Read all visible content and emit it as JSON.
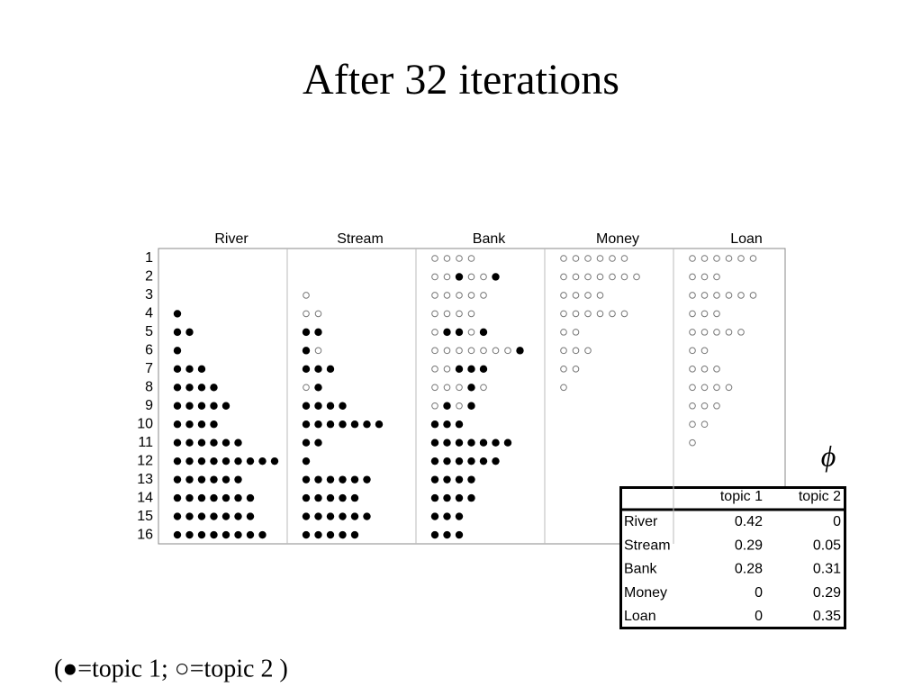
{
  "title": "After 32 iterations",
  "row_labels": [
    "1",
    "2",
    "3",
    "4",
    "5",
    "6",
    "7",
    "8",
    "9",
    "10",
    "11",
    "12",
    "13",
    "14",
    "15",
    "16"
  ],
  "columns": [
    {
      "name": "River",
      "cells": [
        [],
        [],
        [],
        [
          1
        ],
        [
          1,
          1
        ],
        [
          1
        ],
        [
          1,
          1,
          1
        ],
        [
          1,
          1,
          1,
          1
        ],
        [
          1,
          1,
          1,
          1,
          1
        ],
        [
          1,
          1,
          1,
          1
        ],
        [
          1,
          1,
          1,
          1,
          1,
          1
        ],
        [
          1,
          1,
          1,
          1,
          1,
          1,
          1,
          1,
          1
        ],
        [
          1,
          1,
          1,
          1,
          1,
          1
        ],
        [
          1,
          1,
          1,
          1,
          1,
          1,
          1
        ],
        [
          1,
          1,
          1,
          1,
          1,
          1,
          1
        ],
        [
          1,
          1,
          1,
          1,
          1,
          1,
          1,
          1
        ]
      ]
    },
    {
      "name": "Stream",
      "cells": [
        [],
        [],
        [
          2
        ],
        [
          2,
          2
        ],
        [
          1,
          1
        ],
        [
          1,
          2
        ],
        [
          1,
          1,
          1
        ],
        [
          2,
          1
        ],
        [
          1,
          1,
          1,
          1
        ],
        [
          1,
          1,
          1,
          1,
          1,
          1,
          1
        ],
        [
          1,
          1
        ],
        [
          1
        ],
        [
          1,
          1,
          1,
          1,
          1,
          1
        ],
        [
          1,
          1,
          1,
          1,
          1
        ],
        [
          1,
          1,
          1,
          1,
          1,
          1
        ],
        [
          1,
          1,
          1,
          1,
          1
        ]
      ]
    },
    {
      "name": "Bank",
      "cells": [
        [
          2,
          2,
          2,
          2
        ],
        [
          2,
          2,
          1,
          2,
          2,
          1
        ],
        [
          2,
          2,
          2,
          2,
          2
        ],
        [
          2,
          2,
          2,
          2
        ],
        [
          2,
          1,
          1,
          2,
          1
        ],
        [
          2,
          2,
          2,
          2,
          2,
          2,
          2,
          1
        ],
        [
          2,
          2,
          1,
          1,
          1
        ],
        [
          2,
          2,
          2,
          1,
          2
        ],
        [
          2,
          1,
          2,
          1
        ],
        [
          1,
          1,
          1
        ],
        [
          1,
          1,
          1,
          1,
          1,
          1,
          1
        ],
        [
          1,
          1,
          1,
          1,
          1,
          1
        ],
        [
          1,
          1,
          1,
          1
        ],
        [
          1,
          1,
          1,
          1
        ],
        [
          1,
          1,
          1
        ],
        [
          1,
          1,
          1
        ]
      ]
    },
    {
      "name": "Money",
      "cells": [
        [
          2,
          2,
          2,
          2,
          2,
          2
        ],
        [
          2,
          2,
          2,
          2,
          2,
          2,
          2
        ],
        [
          2,
          2,
          2,
          2
        ],
        [
          2,
          2,
          2,
          2,
          2,
          2
        ],
        [
          2,
          2
        ],
        [
          2,
          2,
          2
        ],
        [
          2,
          2
        ],
        [
          2
        ],
        [],
        [],
        [],
        [],
        [],
        [],
        [],
        []
      ]
    },
    {
      "name": "Loan",
      "cells": [
        [
          2,
          2,
          2,
          2,
          2,
          2
        ],
        [
          2,
          2,
          2
        ],
        [
          2,
          2,
          2,
          2,
          2,
          2
        ],
        [
          2,
          2,
          2
        ],
        [
          2,
          2,
          2,
          2,
          2
        ],
        [
          2,
          2
        ],
        [
          2,
          2,
          2
        ],
        [
          2,
          2,
          2,
          2
        ],
        [
          2,
          2,
          2
        ],
        [
          2,
          2
        ],
        [
          2
        ],
        [],
        [],
        [],
        [],
        []
      ]
    }
  ],
  "phi": "ϕ",
  "table": {
    "header": [
      "topic 1",
      "topic 2"
    ],
    "rows": [
      [
        "River",
        0.42,
        0
      ],
      [
        "Stream",
        0.29,
        0.05
      ],
      [
        "Bank",
        0.28,
        0.31
      ],
      [
        "Money",
        0,
        0.29
      ],
      [
        "Loan",
        0,
        0.35
      ]
    ]
  },
  "legend": "(●=topic 1; ○=topic 2  )"
}
